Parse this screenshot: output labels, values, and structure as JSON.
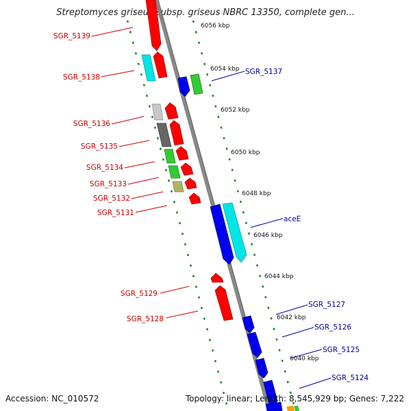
{
  "title": "Streptomyces griseus subsp. griseus NBRC 13350, complete gen...",
  "footer": {
    "accession": "Accession: NC_010572",
    "topology": "Topology: linear; Length: 8,545,929 bp; Genes: 7,222"
  },
  "scale_labels": [
    "6056 kbp",
    "6054 kbp",
    "6052 kbp",
    "6050 kbp",
    "6048 kbp",
    "6046 kbp",
    "6044 kbp",
    "6042 kbp",
    "6040 kbp"
  ],
  "reverse_labels": [
    "SGR_5139",
    "SGR_5138",
    "SGR_5136",
    "SGR_5135",
    "SGR_5134",
    "SGR_5133",
    "SGR_5132",
    "SGR_5131",
    "SGR_5129",
    "SGR_5128"
  ],
  "forward_labels": [
    "SGR_5137",
    "aceE",
    "SGR_5127",
    "SGR_5126",
    "SGR_5125",
    "SGR_5124"
  ],
  "colors": {
    "reverse_label": "#cc0000",
    "forward_label": "#000099",
    "backbone": "#888888",
    "ticks": "#1a8a1a",
    "red": "#ff0000",
    "blue": "#0000ee",
    "cyan": "#00e5e5",
    "green": "#33cc33",
    "grey_light": "#c8c8c8",
    "grey_dark": "#666666",
    "olive": "#b3b366"
  }
}
